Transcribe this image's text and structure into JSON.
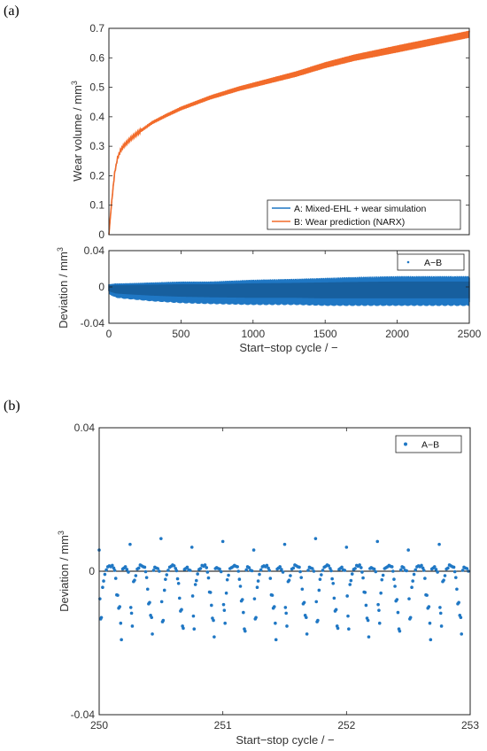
{
  "panels": {
    "a_label": "(a)",
    "b_label": "(b)"
  },
  "colors": {
    "series_a": "#1f77c4",
    "series_b": "#f26b2a",
    "deviation": "#1f77c4",
    "axis": "#222222"
  },
  "chart_data": [
    {
      "id": "a-top",
      "type": "line",
      "title": "",
      "xlabel": "",
      "ylabel": "Wear volume / mm",
      "ylabel_sup": "3",
      "xlim": [
        0,
        2500
      ],
      "ylim": [
        0,
        0.7
      ],
      "yticks": [
        0,
        0.1,
        0.2,
        0.3,
        0.4,
        0.5,
        0.6,
        0.7
      ],
      "ytick_labels": [
        "0",
        "0.1",
        "0.2",
        "0.3",
        "0.4",
        "0.5",
        "0.6",
        "0.7"
      ],
      "grid": false,
      "legend_position": "bottom-right",
      "series": [
        {
          "name": "A: Mixed-EHL + wear simulation",
          "values": [
            [
              0,
              0
            ],
            [
              10,
              0.06
            ],
            [
              25,
              0.14
            ],
            [
              40,
              0.21
            ],
            [
              60,
              0.26
            ],
            [
              80,
              0.285
            ],
            [
              100,
              0.3
            ],
            [
              150,
              0.325
            ],
            [
              200,
              0.345
            ],
            [
              300,
              0.38
            ],
            [
              400,
              0.405
            ],
            [
              500,
              0.428
            ],
            [
              700,
              0.465
            ],
            [
              900,
              0.495
            ],
            [
              1100,
              0.52
            ],
            [
              1300,
              0.545
            ],
            [
              1500,
              0.575
            ],
            [
              1700,
              0.6
            ],
            [
              1900,
              0.62
            ],
            [
              2100,
              0.64
            ],
            [
              2300,
              0.66
            ],
            [
              2500,
              0.68
            ]
          ]
        },
        {
          "name": "B: Wear prediction (NARX)",
          "values": [
            [
              0,
              0
            ],
            [
              10,
              0.06
            ],
            [
              25,
              0.14
            ],
            [
              40,
              0.21
            ],
            [
              60,
              0.26
            ],
            [
              80,
              0.285
            ],
            [
              100,
              0.3
            ],
            [
              150,
              0.325
            ],
            [
              200,
              0.345
            ],
            [
              300,
              0.38
            ],
            [
              400,
              0.405
            ],
            [
              500,
              0.428
            ],
            [
              700,
              0.465
            ],
            [
              900,
              0.495
            ],
            [
              1100,
              0.52
            ],
            [
              1300,
              0.545
            ],
            [
              1500,
              0.575
            ],
            [
              1700,
              0.6
            ],
            [
              1900,
              0.62
            ],
            [
              2100,
              0.64
            ],
            [
              2300,
              0.66
            ],
            [
              2500,
              0.68
            ]
          ]
        }
      ]
    },
    {
      "id": "a-bottom",
      "type": "scatter",
      "title": "",
      "xlabel": "Start−stop cycle / −",
      "ylabel": "Deviation / mm",
      "ylabel_sup": "3",
      "xlim": [
        0,
        2500
      ],
      "ylim": [
        -0.04,
        0.04
      ],
      "xticks": [
        0,
        500,
        1000,
        1500,
        2000,
        2500
      ],
      "xtick_labels": [
        "0",
        "500",
        "1000",
        "1500",
        "2000",
        "2500"
      ],
      "yticks": [
        -0.04,
        0,
        0.04
      ],
      "ytick_labels": [
        "-0.04",
        "0",
        "0.04"
      ],
      "grid": false,
      "legend_position": "top-right",
      "series": [
        {
          "name": "A−B",
          "band": [
            [
              0,
              -0.008,
              0.003
            ],
            [
              50,
              -0.012,
              0.004
            ],
            [
              100,
              -0.013,
              0.004
            ],
            [
              300,
              -0.016,
              0.005
            ],
            [
              500,
              -0.018,
              0.006
            ],
            [
              700,
              -0.019,
              0.006
            ],
            [
              1000,
              -0.02,
              0.008
            ],
            [
              1300,
              -0.02,
              0.009
            ],
            [
              1500,
              -0.021,
              0.01
            ],
            [
              1700,
              -0.021,
              0.011
            ],
            [
              2000,
              -0.021,
              0.012
            ],
            [
              2500,
              -0.021,
              0.012
            ]
          ]
        }
      ]
    },
    {
      "id": "b",
      "type": "scatter",
      "title": "",
      "xlabel": "Start−stop cycle / −",
      "ylabel": "Deviation / mm",
      "ylabel_sup": "3",
      "xlim": [
        250,
        253
      ],
      "ylim": [
        -0.04,
        0.04
      ],
      "xticks": [
        250,
        251,
        252,
        253
      ],
      "xtick_labels": [
        "250",
        "251",
        "252",
        "253"
      ],
      "yticks": [
        -0.04,
        0,
        0.04
      ],
      "ytick_labels": [
        "-0.04",
        "0",
        "0.04"
      ],
      "zero_line": true,
      "grid": false,
      "legend_position": "top-right",
      "series": [
        {
          "name": "A−B",
          "cycle_start": 250,
          "cycle_count": 12,
          "cycle_length": 0.25,
          "points_per_cycle": [
            [
              0.0,
              0.0075
            ],
            [
              0.006,
              -0.0085
            ],
            [
              0.012,
              -0.0125
            ],
            [
              0.018,
              -0.0145
            ],
            [
              0.028,
              -0.0045
            ],
            [
              0.036,
              -0.0025
            ],
            [
              0.046,
              -0.001
            ],
            [
              0.058,
              0.0005
            ],
            [
              0.07,
              0.001
            ],
            [
              0.082,
              0.0015
            ],
            [
              0.094,
              0.0015
            ],
            [
              0.106,
              0.0015
            ],
            [
              0.118,
              0.001
            ],
            [
              0.126,
              0.0
            ],
            [
              0.134,
              -0.002
            ],
            [
              0.142,
              -0.005
            ],
            [
              0.15,
              -0.0075
            ],
            [
              0.158,
              -0.0095
            ],
            [
              0.166,
              -0.0115
            ],
            [
              0.174,
              -0.0145
            ],
            [
              0.18,
              -0.0175
            ],
            [
              0.19,
              0.0005
            ],
            [
              0.2,
              0.001
            ],
            [
              0.212,
              0.001
            ],
            [
              0.224,
              0.0005
            ],
            [
              0.236,
              0.0
            ]
          ]
        }
      ]
    }
  ]
}
